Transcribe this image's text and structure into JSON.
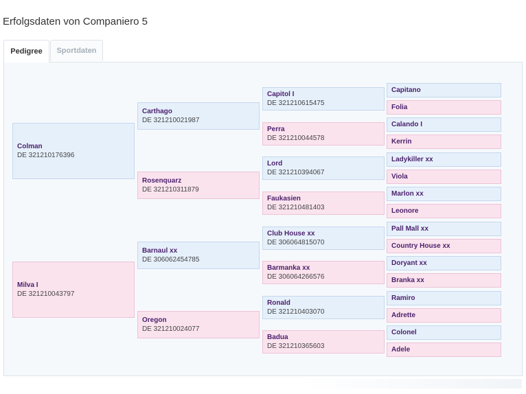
{
  "page": {
    "title": "Erfolgsdaten von Companiero 5"
  },
  "tabs": [
    {
      "label": "Pedigree",
      "active": true
    },
    {
      "label": "Sportdaten",
      "active": false
    }
  ],
  "pedigree": {
    "gen1": [
      {
        "name": "Colman",
        "reg": "DE 321210176396",
        "sex": "male"
      },
      {
        "name": "Milva I",
        "reg": "DE 321210043797",
        "sex": "female"
      }
    ],
    "gen2": [
      {
        "name": "Carthago",
        "reg": "DE 321210021987",
        "sex": "male"
      },
      {
        "name": "Rosenquarz",
        "reg": "DE 321210311879",
        "sex": "female"
      },
      {
        "name": "Barnaul xx",
        "reg": "DE 306062454785",
        "sex": "male"
      },
      {
        "name": "Oregon",
        "reg": "DE 321210024077",
        "sex": "female"
      }
    ],
    "gen3": [
      {
        "name": "Capitol I",
        "reg": "DE 321210615475",
        "sex": "male"
      },
      {
        "name": "Perra",
        "reg": "DE 321210044578",
        "sex": "female"
      },
      {
        "name": "Lord",
        "reg": "DE 321210394067",
        "sex": "male"
      },
      {
        "name": "Faukasien",
        "reg": "DE 321210481403",
        "sex": "female"
      },
      {
        "name": "Club House xx",
        "reg": "DE 306064815070",
        "sex": "male"
      },
      {
        "name": "Barmanka xx",
        "reg": "DE 306064266576",
        "sex": "female"
      },
      {
        "name": "Ronald",
        "reg": "DE 321210403070",
        "sex": "male"
      },
      {
        "name": "Badua",
        "reg": "DE 321210365603",
        "sex": "female"
      }
    ],
    "gen4": [
      {
        "name": "Capitano",
        "sex": "male"
      },
      {
        "name": "Folia",
        "sex": "female"
      },
      {
        "name": "Calando I",
        "sex": "male"
      },
      {
        "name": "Kerrin",
        "sex": "female"
      },
      {
        "name": "Ladykiller xx",
        "sex": "male"
      },
      {
        "name": "Viola",
        "sex": "female"
      },
      {
        "name": "Marlon xx",
        "sex": "male"
      },
      {
        "name": "Leonore",
        "sex": "female"
      },
      {
        "name": "Pall Mall xx",
        "sex": "male"
      },
      {
        "name": "Country House xx",
        "sex": "female"
      },
      {
        "name": "Doryant xx",
        "sex": "male"
      },
      {
        "name": "Branka xx",
        "sex": "female"
      },
      {
        "name": "Ramiro",
        "sex": "male"
      },
      {
        "name": "Adrette",
        "sex": "female"
      },
      {
        "name": "Colonel",
        "sex": "male"
      },
      {
        "name": "Adele",
        "sex": "female"
      }
    ]
  }
}
